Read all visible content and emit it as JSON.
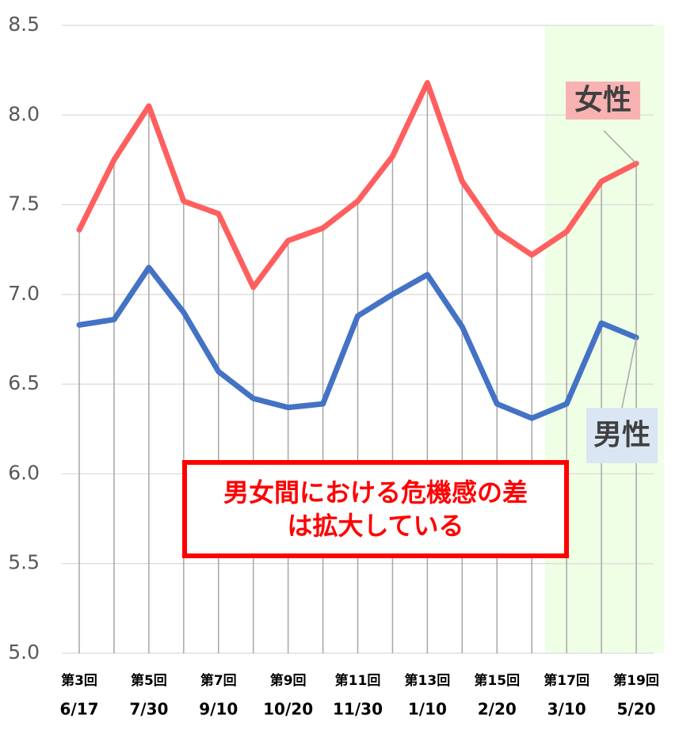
{
  "chart_data": {
    "type": "line",
    "categories": [
      "第3回",
      null,
      "第5回",
      null,
      "第7回",
      null,
      "第9回",
      null,
      "第11回",
      null,
      "第13回",
      null,
      "第15回",
      null,
      "第17回",
      null,
      "第19回"
    ],
    "dates": [
      "6/17",
      null,
      "7/30",
      null,
      "9/10",
      null,
      "10/20",
      null,
      "11/30",
      null,
      "1/10",
      null,
      "2/20",
      null,
      "3/10",
      null,
      "5/20"
    ],
    "series": [
      {
        "name": "女性",
        "color": "#ff5f5f",
        "values": [
          7.36,
          7.75,
          8.05,
          7.52,
          7.45,
          7.04,
          7.3,
          7.37,
          7.52,
          7.77,
          8.18,
          7.63,
          7.35,
          7.22,
          7.35,
          7.63,
          7.73
        ]
      },
      {
        "name": "男性",
        "color": "#4472c4",
        "values": [
          6.83,
          6.86,
          7.15,
          6.9,
          6.57,
          6.42,
          6.37,
          6.39,
          6.88,
          7.0,
          7.11,
          6.82,
          6.39,
          6.31,
          6.39,
          6.84,
          6.76
        ]
      }
    ],
    "ylim": [
      5,
      8.5
    ],
    "yticks": [
      {
        "value": 5,
        "label": "5.0"
      },
      5.5,
      {
        "value": 6,
        "label": "6.0"
      },
      6.5,
      {
        "value": 7,
        "label": "7.0"
      },
      7.5,
      {
        "value": 8,
        "label": "8.0"
      },
      8.5
    ],
    "grid": true,
    "annotation": [
      "男女間における危機感の差",
      "は拡大している"
    ]
  }
}
